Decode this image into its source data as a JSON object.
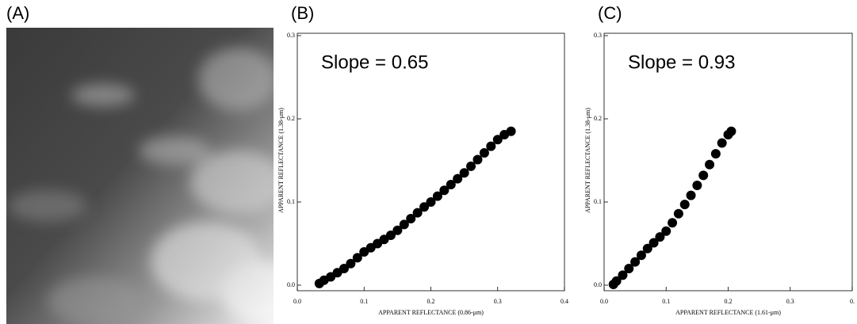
{
  "image": {
    "label": "(A)"
  },
  "chart_data": [
    {
      "type": "scatter",
      "label": "(B)",
      "annotation": "Slope = 0.65",
      "xlabel": "APPARENT REFLECTANCE (0.86-μm)",
      "ylabel": "APPARENT REFLECTANCE (1.38-μm)",
      "color": "#000000",
      "x": [
        0.033,
        0.04,
        0.05,
        0.06,
        0.07,
        0.08,
        0.09,
        0.1,
        0.11,
        0.12,
        0.13,
        0.14,
        0.15,
        0.16,
        0.17,
        0.18,
        0.19,
        0.2,
        0.21,
        0.22,
        0.23,
        0.24,
        0.25,
        0.26,
        0.27,
        0.28,
        0.29,
        0.3,
        0.31,
        0.32
      ],
      "y": [
        0.002,
        0.006,
        0.01,
        0.015,
        0.02,
        0.026,
        0.033,
        0.04,
        0.045,
        0.05,
        0.055,
        0.06,
        0.066,
        0.073,
        0.08,
        0.087,
        0.094,
        0.1,
        0.107,
        0.114,
        0.121,
        0.128,
        0.135,
        0.143,
        0.151,
        0.159,
        0.167,
        0.175,
        0.181,
        0.185
      ],
      "xlim": [
        0,
        0.4
      ],
      "ylim": [
        0,
        0.3
      ],
      "xticks": [
        {
          "value": 0,
          "label": "0.0"
        },
        0.1,
        0.2,
        0.3,
        0.4
      ],
      "yticks": [
        {
          "value": 0,
          "label": "0.0"
        },
        0.1,
        0.2,
        0.3
      ]
    },
    {
      "type": "scatter",
      "label": "(C)",
      "annotation": "Slope = 0.93",
      "xlabel": "APPARENT REFLECTANCE (1.61-μm)",
      "ylabel": "APPARENT REFLECTANCE (1.38-μm)",
      "color": "#000000",
      "x": [
        0.015,
        0.02,
        0.03,
        0.04,
        0.05,
        0.06,
        0.07,
        0.08,
        0.09,
        0.1,
        0.11,
        0.12,
        0.13,
        0.14,
        0.15,
        0.16,
        0.17,
        0.18,
        0.19,
        0.2,
        0.205
      ],
      "y": [
        0.001,
        0.005,
        0.012,
        0.02,
        0.028,
        0.036,
        0.044,
        0.051,
        0.058,
        0.065,
        0.075,
        0.086,
        0.097,
        0.108,
        0.12,
        0.132,
        0.145,
        0.158,
        0.171,
        0.181,
        0.185
      ],
      "xlim": [
        0,
        0.4
      ],
      "ylim": [
        0,
        0.3
      ],
      "xticks": [
        {
          "value": 0,
          "label": "0.0"
        },
        0.1,
        0.2,
        0.3,
        {
          "value": 0.4,
          "label": "0."
        }
      ],
      "yticks": [
        {
          "value": 0,
          "label": "0.0"
        },
        0.1,
        0.2,
        0.3
      ]
    }
  ]
}
